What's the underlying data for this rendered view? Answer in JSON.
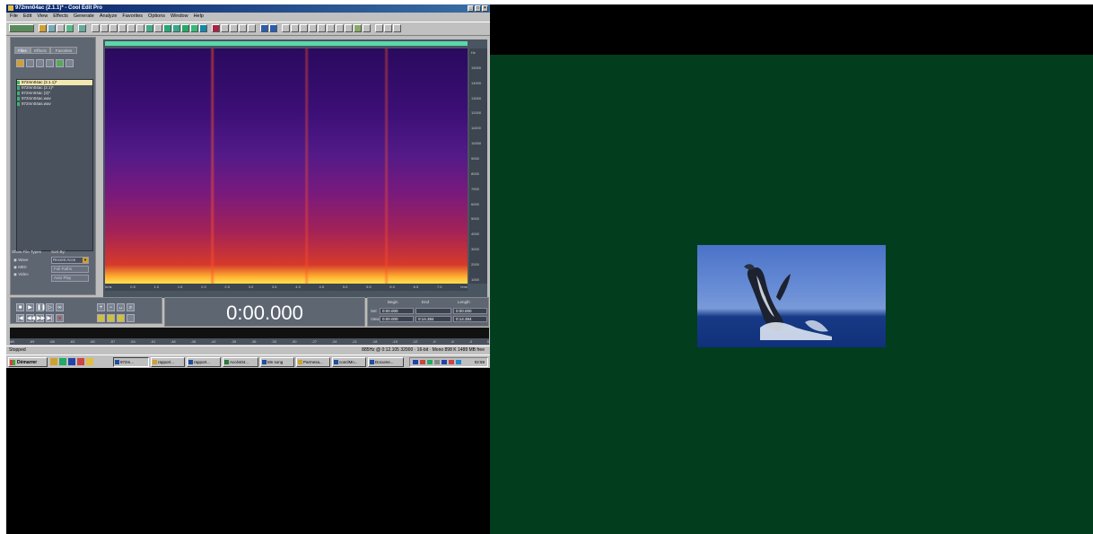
{
  "window": {
    "title": "972mn04ac (2.1.1)* - Cool Edit Pro",
    "controls": [
      "_",
      "□",
      "×"
    ]
  },
  "menu": [
    "File",
    "Edit",
    "View",
    "Effects",
    "Generate",
    "Analyze",
    "Favorites",
    "Options",
    "Window",
    "Help"
  ],
  "organizer": {
    "tabs": [
      "Files",
      "Effects",
      "Favorites"
    ],
    "files": [
      "972mn04ac (2.1.1)*",
      "972mn04ac (2.1)*",
      "972mn04ac (2)*",
      "972mn04ac.wav",
      "972mn04as.wav"
    ],
    "show_file_types_label": "Show File Types",
    "sort_by_label": "Sort By:",
    "types": [
      "Wave",
      "MIDI",
      "Video"
    ],
    "sort_value": "Recent Acce",
    "full_paths_label": "Full Paths",
    "auto_play_label": "Auto Play"
  },
  "spectrogram": {
    "hz_ticks": [
      "Hz",
      "15000",
      "14000",
      "13000",
      "12000",
      "11000",
      "10000",
      "9000",
      "8000",
      "7000",
      "6000",
      "5000",
      "4000",
      "3000",
      "2000",
      "1000"
    ],
    "time_ticks": [
      "hms",
      "0.5",
      "1.0",
      "1.5",
      "2.0",
      "2.5",
      "3.0",
      "3.5",
      "4.0",
      "4.5",
      "5.0",
      "5.5",
      "6.0",
      "6.5",
      "7.0",
      "hms"
    ]
  },
  "transport": {
    "time": "0:00.000"
  },
  "selection": {
    "headers": [
      "Begin",
      "End",
      "Length"
    ],
    "sel_label": "Sel",
    "view_label": "View",
    "sel": [
      "0:00.000",
      "",
      "0:00.000"
    ],
    "view": [
      "0:00.000",
      "0:14.384",
      "0:14.384"
    ]
  },
  "level_ticks": [
    "dB",
    "-69",
    "-66",
    "-63",
    "-60",
    "-57",
    "-54",
    "-51",
    "-48",
    "-45",
    "-42",
    "-39",
    "-36",
    "-33",
    "-30",
    "-27",
    "-24",
    "-21",
    "-18",
    "-15",
    "-12",
    "-9",
    "-6",
    "-3",
    "0"
  ],
  "status": {
    "left": "Stopped",
    "right": "885Hz @ 0:12.105     32000 · 16-bit · Mono    898 K      1488 MB free"
  },
  "taskbar": {
    "start": "Démarrer",
    "tasks": [
      "972m...",
      "rapport...",
      "rapport...",
      "Accès04...",
      "Mn song",
      "Parmesa...",
      "conclMn...",
      "Docume..."
    ],
    "clock": "02:59"
  },
  "colors": {
    "desktop_green": "#023d1e",
    "title_blue": "#0a246a",
    "panel_gray": "#5e6672",
    "wave_green": "#5bd7ac"
  }
}
